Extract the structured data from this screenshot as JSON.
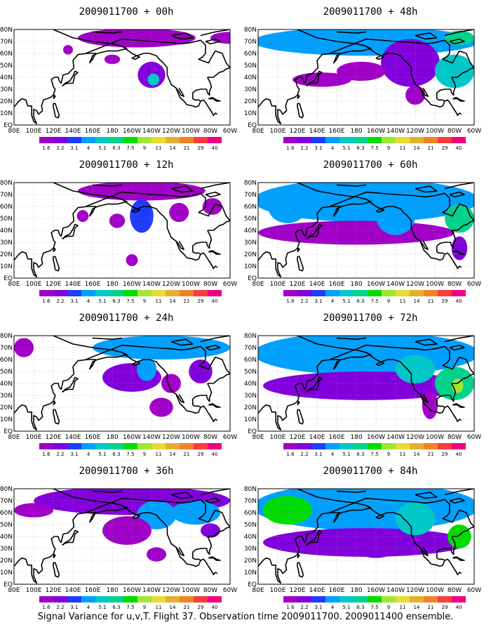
{
  "caption": "Signal Variance for u,v,T. Flight 37. Observation time 2009011700. 2009011400 ensemble.",
  "colorbar": {
    "labels": [
      "1.6",
      "2.2",
      "3.1",
      "4",
      "5.1",
      "6.3",
      "7.5",
      "9",
      "11",
      "14",
      "21",
      "29",
      "40"
    ],
    "colors": [
      "#a000c8",
      "#8200dc",
      "#1e3cff",
      "#00a0ff",
      "#00c8c8",
      "#00d28c",
      "#00dc00",
      "#a0e632",
      "#e6dc32",
      "#e6af2d",
      "#f08228",
      "#fa3c3c",
      "#f00082"
    ]
  },
  "colors": {
    "land_outline": "#000000",
    "grid": "#9a9a9a",
    "background": "#ffffff"
  },
  "chart_data": [
    {
      "type": "heatmap",
      "panel_id": "p00",
      "title": "2009011700 + 00h",
      "x_ticks": [
        "80E",
        "100E",
        "120E",
        "140E",
        "160E",
        "180",
        "160W",
        "140W",
        "120W",
        "100W",
        "80W",
        "60W"
      ],
      "y_ticks": [
        "EQ",
        "10N",
        "20N",
        "30N",
        "40N",
        "50N",
        "60N",
        "70N",
        "80N"
      ],
      "xlim": [
        80,
        300
      ],
      "ylim": [
        0,
        80
      ],
      "blobs": [
        {
          "lon": 205,
          "lat": 73,
          "rlon": 60,
          "rlat": 8,
          "v": 1.8
        },
        {
          "lon": 220,
          "lat": 42,
          "rlon": 14,
          "rlat": 11,
          "v": 2.5
        },
        {
          "lon": 222,
          "lat": 38,
          "rlon": 6,
          "rlat": 5,
          "v": 5.5
        },
        {
          "lon": 180,
          "lat": 55,
          "rlon": 8,
          "rlat": 4,
          "v": 1.8
        },
        {
          "lon": 135,
          "lat": 63,
          "rlon": 5,
          "rlat": 4,
          "v": 1.8
        },
        {
          "lon": 300,
          "lat": 73,
          "rlon": 20,
          "rlat": 5,
          "v": 1.8
        }
      ]
    },
    {
      "type": "heatmap",
      "panel_id": "p48",
      "title": "2009011700 + 48h",
      "x_ticks": [
        "80E",
        "100E",
        "120E",
        "140E",
        "160E",
        "180",
        "160W",
        "140W",
        "120W",
        "100W",
        "80W",
        "60W"
      ],
      "y_ticks": [
        "EQ",
        "10N",
        "20N",
        "30N",
        "40N",
        "50N",
        "60N",
        "70N",
        "80N"
      ],
      "xlim": [
        80,
        300
      ],
      "ylim": [
        0,
        80
      ],
      "blobs": [
        {
          "lon": 190,
          "lat": 70,
          "rlon": 115,
          "rlat": 12,
          "v": 4.5
        },
        {
          "lon": 235,
          "lat": 52,
          "rlon": 30,
          "rlat": 20,
          "v": 3.0
        },
        {
          "lon": 280,
          "lat": 45,
          "rlon": 20,
          "rlat": 14,
          "v": 5.8
        },
        {
          "lon": 145,
          "lat": 38,
          "rlon": 30,
          "rlat": 6,
          "v": 1.8
        },
        {
          "lon": 185,
          "lat": 45,
          "rlon": 25,
          "rlat": 8,
          "v": 2.0
        },
        {
          "lon": 240,
          "lat": 25,
          "rlon": 10,
          "rlat": 8,
          "v": 2.0
        },
        {
          "lon": 285,
          "lat": 73,
          "rlon": 15,
          "rlat": 6,
          "v": 6.3
        }
      ]
    },
    {
      "type": "heatmap",
      "panel_id": "p12",
      "title": "2009011700 + 12h",
      "x_ticks": [
        "80E",
        "100E",
        "120E",
        "140E",
        "160E",
        "180",
        "160W",
        "140W",
        "120W",
        "100W",
        "80W",
        "60W"
      ],
      "y_ticks": [
        "EQ",
        "10N",
        "20N",
        "30N",
        "40N",
        "50N",
        "60N",
        "70N",
        "80N"
      ],
      "xlim": [
        80,
        300
      ],
      "ylim": [
        0,
        80
      ],
      "blobs": [
        {
          "lon": 210,
          "lat": 73,
          "rlon": 65,
          "rlat": 8,
          "v": 1.8
        },
        {
          "lon": 210,
          "lat": 52,
          "rlon": 12,
          "rlat": 14,
          "v": 3.5
        },
        {
          "lon": 185,
          "lat": 48,
          "rlon": 8,
          "rlat": 6,
          "v": 1.8
        },
        {
          "lon": 150,
          "lat": 52,
          "rlon": 6,
          "rlat": 5,
          "v": 1.8
        },
        {
          "lon": 248,
          "lat": 55,
          "rlon": 10,
          "rlat": 8,
          "v": 1.8
        },
        {
          "lon": 282,
          "lat": 60,
          "rlon": 10,
          "rlat": 7,
          "v": 1.8
        },
        {
          "lon": 200,
          "lat": 15,
          "rlon": 6,
          "rlat": 5,
          "v": 1.8
        }
      ]
    },
    {
      "type": "heatmap",
      "panel_id": "p60",
      "title": "2009011700 + 60h",
      "x_ticks": [
        "80E",
        "100E",
        "120E",
        "140E",
        "160E",
        "180",
        "160W",
        "140W",
        "120W",
        "100W",
        "80W",
        "60W"
      ],
      "y_ticks": [
        "EQ",
        "10N",
        "20N",
        "30N",
        "40N",
        "50N",
        "60N",
        "70N",
        "80N"
      ],
      "xlim": [
        80,
        300
      ],
      "ylim": [
        0,
        80
      ],
      "blobs": [
        {
          "lon": 190,
          "lat": 65,
          "rlon": 115,
          "rlat": 18,
          "v": 4.5
        },
        {
          "lon": 180,
          "lat": 38,
          "rlon": 100,
          "rlat": 10,
          "v": 2.0
        },
        {
          "lon": 220,
          "lat": 52,
          "rlon": 20,
          "rlat": 16,
          "v": 5.0
        },
        {
          "lon": 285,
          "lat": 50,
          "rlon": 15,
          "rlat": 12,
          "v": 7.0
        },
        {
          "lon": 285,
          "lat": 25,
          "rlon": 8,
          "rlat": 10,
          "v": 2.2
        },
        {
          "lon": 110,
          "lat": 60,
          "rlon": 20,
          "rlat": 14,
          "v": 4.0
        }
      ]
    },
    {
      "type": "heatmap",
      "panel_id": "p24",
      "title": "2009011700 + 24h",
      "x_ticks": [
        "80E",
        "100E",
        "120E",
        "140E",
        "160E",
        "180",
        "160W",
        "140W",
        "120W",
        "100W",
        "80W",
        "60W"
      ],
      "y_ticks": [
        "EQ",
        "10N",
        "20N",
        "30N",
        "40N",
        "50N",
        "60N",
        "70N",
        "80N"
      ],
      "xlim": [
        80,
        300
      ],
      "ylim": [
        0,
        80
      ],
      "blobs": [
        {
          "lon": 230,
          "lat": 70,
          "rlon": 70,
          "rlat": 10,
          "v": 4.0
        },
        {
          "lon": 200,
          "lat": 45,
          "rlon": 30,
          "rlat": 12,
          "v": 2.2
        },
        {
          "lon": 215,
          "lat": 52,
          "rlon": 10,
          "rlat": 10,
          "v": 4.5
        },
        {
          "lon": 240,
          "lat": 40,
          "rlon": 10,
          "rlat": 8,
          "v": 2.0
        },
        {
          "lon": 90,
          "lat": 70,
          "rlon": 10,
          "rlat": 8,
          "v": 1.8
        },
        {
          "lon": 230,
          "lat": 20,
          "rlon": 12,
          "rlat": 8,
          "v": 1.8
        },
        {
          "lon": 270,
          "lat": 50,
          "rlon": 12,
          "rlat": 10,
          "v": 2.5
        }
      ]
    },
    {
      "type": "heatmap",
      "panel_id": "p72",
      "title": "2009011700 + 72h",
      "x_ticks": [
        "80E",
        "100E",
        "120E",
        "140E",
        "160E",
        "180",
        "160W",
        "140W",
        "120W",
        "100W",
        "80W",
        "60W"
      ],
      "y_ticks": [
        "EQ",
        "10N",
        "20N",
        "30N",
        "40N",
        "50N",
        "60N",
        "70N",
        "80N"
      ],
      "xlim": [
        80,
        300
      ],
      "ylim": [
        0,
        80
      ],
      "blobs": [
        {
          "lon": 190,
          "lat": 65,
          "rlon": 115,
          "rlat": 18,
          "v": 5.0
        },
        {
          "lon": 190,
          "lat": 38,
          "rlon": 105,
          "rlat": 12,
          "v": 2.5
        },
        {
          "lon": 280,
          "lat": 40,
          "rlon": 20,
          "rlat": 14,
          "v": 6.5
        },
        {
          "lon": 283,
          "lat": 38,
          "rlon": 6,
          "rlat": 6,
          "v": 9.5
        },
        {
          "lon": 240,
          "lat": 52,
          "rlon": 20,
          "rlat": 12,
          "v": 5.5
        },
        {
          "lon": 255,
          "lat": 22,
          "rlon": 8,
          "rlat": 12,
          "v": 2.0
        }
      ]
    },
    {
      "type": "heatmap",
      "panel_id": "p36",
      "title": "2009011700 + 36h",
      "x_ticks": [
        "80E",
        "100E",
        "120E",
        "140E",
        "160E",
        "180",
        "160W",
        "140W",
        "120W",
        "100W",
        "80W",
        "60W"
      ],
      "y_ticks": [
        "EQ",
        "10N",
        "20N",
        "30N",
        "40N",
        "50N",
        "60N",
        "70N",
        "80N"
      ],
      "xlim": [
        80,
        300
      ],
      "ylim": [
        0,
        80
      ],
      "blobs": [
        {
          "lon": 200,
          "lat": 70,
          "rlon": 100,
          "rlat": 12,
          "v": 2.5
        },
        {
          "lon": 225,
          "lat": 58,
          "rlon": 20,
          "rlat": 12,
          "v": 5.0
        },
        {
          "lon": 265,
          "lat": 60,
          "rlon": 25,
          "rlat": 10,
          "v": 4.0
        },
        {
          "lon": 195,
          "lat": 45,
          "rlon": 25,
          "rlat": 12,
          "v": 2.0
        },
        {
          "lon": 100,
          "lat": 62,
          "rlon": 20,
          "rlat": 6,
          "v": 1.8
        },
        {
          "lon": 225,
          "lat": 25,
          "rlon": 10,
          "rlat": 6,
          "v": 1.8
        },
        {
          "lon": 280,
          "lat": 45,
          "rlon": 10,
          "rlat": 6,
          "v": 2.5
        }
      ]
    },
    {
      "type": "heatmap",
      "panel_id": "p84",
      "title": "2009011700 + 84h",
      "x_ticks": [
        "80E",
        "100E",
        "120E",
        "140E",
        "160E",
        "180",
        "160W",
        "140W",
        "120W",
        "100W",
        "80W",
        "60W"
      ],
      "y_ticks": [
        "EQ",
        "10N",
        "20N",
        "30N",
        "40N",
        "50N",
        "60N",
        "70N",
        "80N"
      ],
      "xlim": [
        80,
        300
      ],
      "ylim": [
        0,
        80
      ],
      "blobs": [
        {
          "lon": 190,
          "lat": 65,
          "rlon": 115,
          "rlat": 20,
          "v": 5.0
        },
        {
          "lon": 190,
          "lat": 35,
          "rlon": 105,
          "rlat": 12,
          "v": 3.0
        },
        {
          "lon": 110,
          "lat": 62,
          "rlon": 25,
          "rlat": 12,
          "v": 7.5
        },
        {
          "lon": 240,
          "lat": 55,
          "rlon": 20,
          "rlat": 14,
          "v": 6.0
        },
        {
          "lon": 285,
          "lat": 40,
          "rlon": 12,
          "rlat": 10,
          "v": 7.5
        },
        {
          "lon": 200,
          "lat": 30,
          "rlon": 20,
          "rlat": 8,
          "v": 2.5
        }
      ]
    }
  ]
}
